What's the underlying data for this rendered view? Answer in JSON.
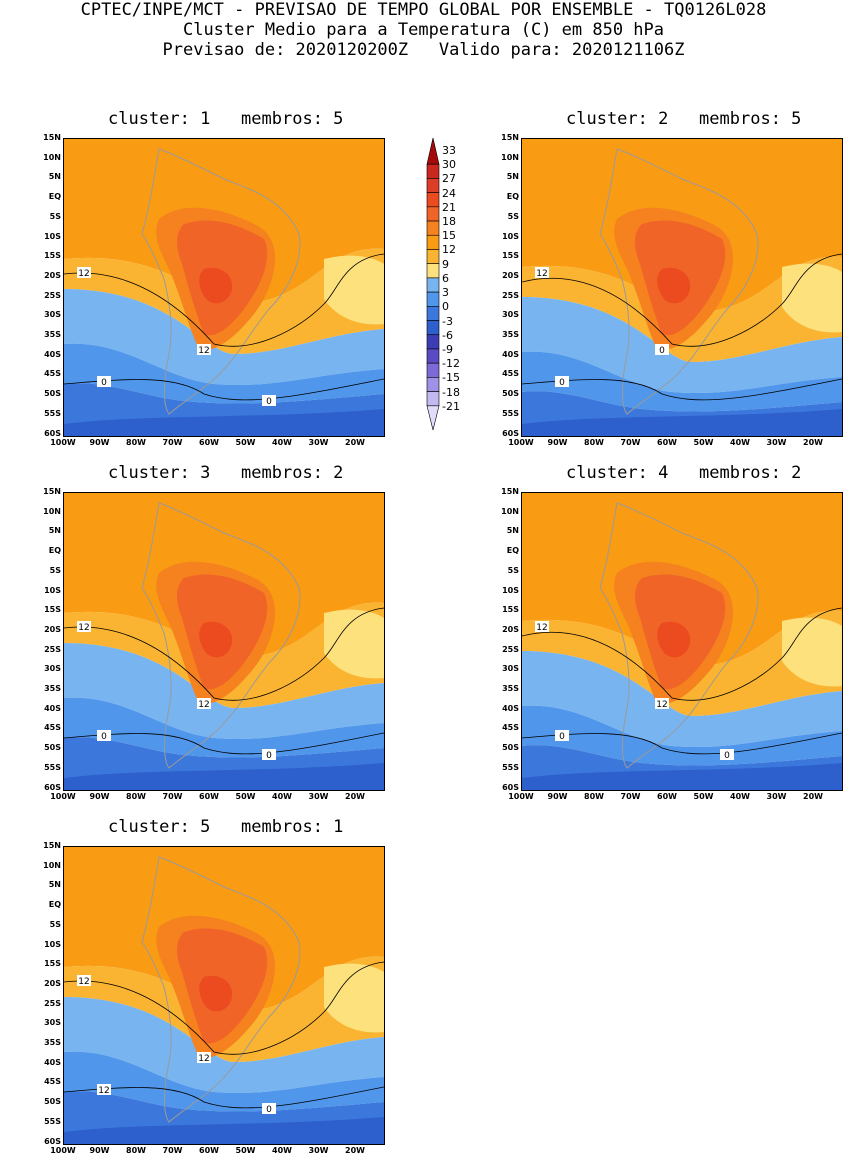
{
  "header": {
    "line1": "CPTEC/INPE/MCT - PREVISAO DE TEMPO GLOBAL POR ENSEMBLE - TQ0126L028",
    "line2": "Cluster Medio para a Temperatura (C) em 850 hPa",
    "line3": "Previsao de: 2020120200Z   Valido para: 2020121106Z"
  },
  "lat_ticks": [
    "15N",
    "10N",
    "5N",
    "EQ",
    "5S",
    "10S",
    "15S",
    "20S",
    "25S",
    "30S",
    "35S",
    "40S",
    "45S",
    "50S",
    "55S",
    "60S"
  ],
  "lon_ticks": [
    "100W",
    "90W",
    "80W",
    "70W",
    "60W",
    "50W",
    "40W",
    "30W",
    "20W"
  ],
  "colorbar": {
    "labels": [
      "33",
      "30",
      "27",
      "24",
      "21",
      "18",
      "15",
      "12",
      "9",
      "6",
      "3",
      "0",
      "-3",
      "-6",
      "-9",
      "-12",
      "-15",
      "-18",
      "-21"
    ],
    "colors": [
      "#a50a0a",
      "#c8281e",
      "#dc3c28",
      "#eb4b1e",
      "#f06428",
      "#f5821e",
      "#fa9b14",
      "#fab432",
      "#fce17d",
      "#78b4f0",
      "#5096eb",
      "#3c78dc",
      "#2d5fcd",
      "#3c3cb4",
      "#5a4bc3",
      "#7d69d7",
      "#a091e6",
      "#c3b9f0",
      "#e1dcfa"
    ]
  },
  "panels": [
    {
      "title": "cluster: 1   membros: 5",
      "contour_labels": [
        "12",
        "12",
        "0",
        "0"
      ]
    },
    {
      "title": "cluster: 2   membros: 5",
      "contour_labels": [
        "12",
        "0",
        "0"
      ]
    },
    {
      "title": "cluster: 3   membros: 2",
      "contour_labels": [
        "12",
        "12",
        "0",
        "0"
      ]
    },
    {
      "title": "cluster: 4   membros: 2",
      "contour_labels": [
        "12",
        "12",
        "0",
        "0"
      ]
    },
    {
      "title": "cluster: 5   membros: 1",
      "contour_labels": [
        "12",
        "12",
        "12",
        "0"
      ]
    }
  ]
}
